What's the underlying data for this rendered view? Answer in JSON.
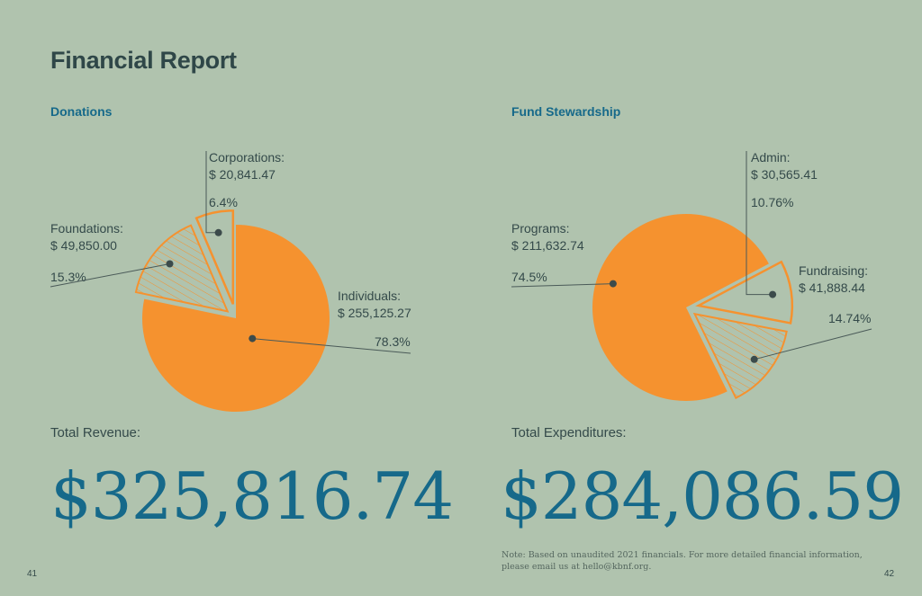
{
  "title": "Financial Report",
  "colors": {
    "background": "#b0c3ae",
    "accent_orange": "#f5922f",
    "heading_blue": "#16698a",
    "text_dark": "#2f4748"
  },
  "donations": {
    "heading": "Donations",
    "total_label": "Total Revenue:",
    "total_value": "$325,816.74"
  },
  "stewardship": {
    "heading": "Fund Stewardship",
    "total_label": "Total Expenditures:",
    "total_value": "$284,086.59"
  },
  "note": {
    "line1": "Note: Based on unaudited 2021 financials. For more detailed financial information,",
    "line2": "please email us at hello@kbnf.org."
  },
  "page_numbers": {
    "left": "41",
    "right": "42"
  },
  "chart_data": [
    {
      "type": "pie",
      "title": "Donations",
      "slices": [
        {
          "name": "Individuals:",
          "amount": "$ 255,125.27",
          "value": 255125.27,
          "percent_label": "78.3%",
          "style": "solid"
        },
        {
          "name": "Foundations:",
          "amount": "$ 49,850.00",
          "value": 49850.0,
          "percent_label": "15.3%",
          "style": "hatched"
        },
        {
          "name": "Corporations:",
          "amount": "$ 20,841.47",
          "value": 20841.47,
          "percent_label": "6.4%",
          "style": "outline"
        }
      ]
    },
    {
      "type": "pie",
      "title": "Fund Stewardship",
      "slices": [
        {
          "name": "Programs:",
          "amount": "$ 211,632.74",
          "value": 211632.74,
          "percent_label": "74.5%",
          "style": "solid"
        },
        {
          "name": "Admin:",
          "amount": "$ 30,565.41",
          "value": 30565.41,
          "percent_label": "10.76%",
          "style": "outline"
        },
        {
          "name": "Fundraising:",
          "amount": "$ 41,888.44",
          "value": 41888.44,
          "percent_label": "14.74%",
          "style": "hatched"
        }
      ]
    }
  ]
}
